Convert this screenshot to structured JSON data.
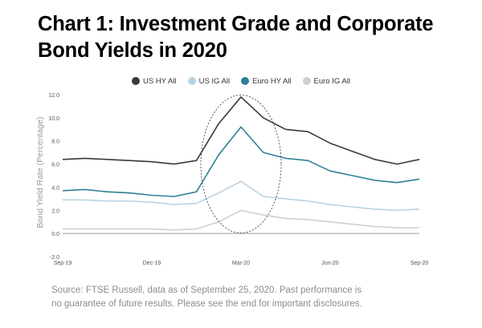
{
  "title_lines": [
    "Chart 1: Investment Grade and Corporate",
    "Bond Yields in 2020"
  ],
  "source_lines": [
    "Source: FTSE Russell, data as of September 25, 2020. Past performance is",
    "no guarantee of future results. Please see the end for important disclosures."
  ],
  "chart_data": {
    "type": "line",
    "title": "Chart 1: Investment Grade and Corporate Bond Yields in 2020",
    "xlabel": "",
    "ylabel": "Bond Yield Rate (Percentage)",
    "x_ticks": [
      "Sep-19",
      "Dec-19",
      "Mar-20",
      "Jun-20",
      "Sep-20"
    ],
    "y_ticks": [
      "12.0",
      "10.0",
      "8.0",
      "6.0",
      "4.0",
      "2.0",
      "0.0",
      "-2.0"
    ],
    "ylim": [
      -2,
      12
    ],
    "legend_position": "top-center",
    "grid": false,
    "annotation": "dotted ellipse around the March 2020 spike",
    "x": [
      "2019-09",
      "2019-10",
      "2019-11",
      "2019-12",
      "2020-01",
      "2020-02",
      "2020-02b",
      "2020-03a",
      "2020-03b",
      "2020-03c",
      "2020-04a",
      "2020-04b",
      "2020-05",
      "2020-06",
      "2020-07",
      "2020-08",
      "2020-09"
    ],
    "series": [
      {
        "name": "US HY All",
        "color": "#3a3a3a",
        "values": [
          6.4,
          6.5,
          6.4,
          6.3,
          6.2,
          6.0,
          6.3,
          9.5,
          11.8,
          10.0,
          9.0,
          8.8,
          7.8,
          7.1,
          6.4,
          6.0,
          6.4
        ]
      },
      {
        "name": "US IG All",
        "color": "#b9d3e3",
        "values": [
          2.9,
          2.9,
          2.8,
          2.8,
          2.7,
          2.5,
          2.6,
          3.5,
          4.5,
          3.2,
          3.0,
          2.8,
          2.5,
          2.3,
          2.1,
          2.0,
          2.1
        ]
      },
      {
        "name": "Euro HY All",
        "color": "#2f7f96",
        "values": [
          3.7,
          3.8,
          3.6,
          3.5,
          3.3,
          3.2,
          3.6,
          6.8,
          9.2,
          7.0,
          6.5,
          6.3,
          5.4,
          5.0,
          4.6,
          4.4,
          4.7
        ]
      },
      {
        "name": "Euro IG All",
        "color": "#cfcfcf",
        "values": [
          0.4,
          0.4,
          0.4,
          0.4,
          0.4,
          0.3,
          0.4,
          1.0,
          2.0,
          1.6,
          1.3,
          1.2,
          1.0,
          0.8,
          0.6,
          0.5,
          0.5
        ]
      }
    ]
  }
}
